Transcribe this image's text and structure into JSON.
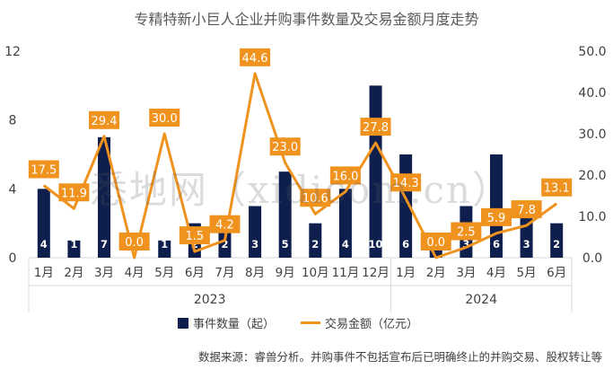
{
  "chart_data": {
    "type": "bar+line",
    "title": "专精特新小巨人企业并购事件数量及交易金额月度走势",
    "categories": [
      "1月",
      "2月",
      "3月",
      "4月",
      "5月",
      "6月",
      "7月",
      "8月",
      "9月",
      "10月",
      "11月",
      "12月",
      "1月",
      "2月",
      "3月",
      "4月",
      "5月",
      "6月"
    ],
    "groups": [
      {
        "label": "2023",
        "from": 0,
        "to": 11
      },
      {
        "label": "2024",
        "from": 12,
        "to": 17
      }
    ],
    "series": [
      {
        "name": "事件数量（起）",
        "type": "bar",
        "axis": "left",
        "color": "#0e1f4d",
        "values": [
          4,
          1,
          7,
          0,
          1,
          2,
          2,
          3,
          5,
          2,
          4,
          10,
          6,
          1,
          3,
          6,
          3,
          2
        ]
      },
      {
        "name": "交易金额（亿元）",
        "type": "line",
        "axis": "right",
        "color": "#f0921e",
        "values": [
          17.5,
          11.9,
          29.4,
          0.0,
          30.0,
          1.5,
          4.2,
          44.6,
          23.0,
          10.6,
          16.0,
          27.8,
          14.3,
          0.0,
          2.5,
          5.9,
          7.8,
          13.1
        ]
      }
    ],
    "y_left": {
      "ylim": [
        0,
        12
      ],
      "ticks": [
        0,
        4,
        8,
        12
      ]
    },
    "y_right": {
      "ylim": [
        0,
        50
      ],
      "ticks": [
        "0.0",
        "10.0",
        "20.0",
        "30.0",
        "40.0",
        "50.0"
      ]
    },
    "legend_placement": "bottom",
    "grid": false
  },
  "source_note": "数据来源：睿兽分析。并购事件不包括宣布后已明确终止的并购交易、股权转让等",
  "watermark": "悉地网（xidicom.cn）"
}
